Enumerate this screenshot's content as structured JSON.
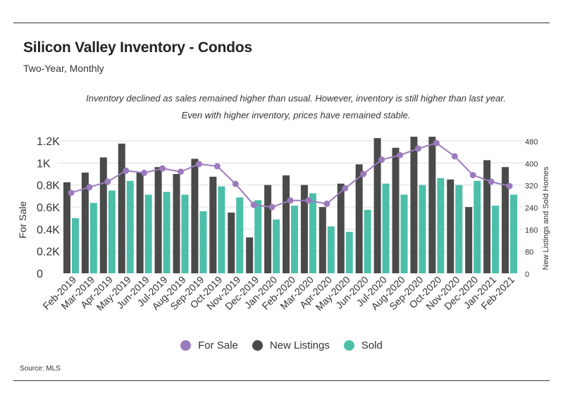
{
  "header": {
    "title": "Silicon Valley Inventory - Condos",
    "subtitle": "Two-Year, Monthly",
    "annotation": "Inventory declined as sales remained higher than usual. However, inventory is still higher than last year. Even with higher inventory, prices have remained stable."
  },
  "footer": {
    "source": "Source:  MLS"
  },
  "colors": {
    "for_sale": "#9b7bbd",
    "new_listings": "#4a4a4a",
    "sold": "#4cbfa9",
    "grid": "#dddddd"
  },
  "legend": [
    {
      "label": "For Sale",
      "color": "#9b7bbd"
    },
    {
      "label": "New Listings",
      "color": "#4a4a4a"
    },
    {
      "label": "Sold",
      "color": "#4cbfa9"
    }
  ],
  "chart_data": {
    "type": "bar",
    "title": "Silicon Valley Inventory - Condos",
    "subtitle": "Two-Year, Monthly",
    "ylabel_left": "For Sale",
    "ylabel_right": "New Listings and Sold Homes",
    "ylim_left": [
      0,
      1200
    ],
    "ylim_right": [
      0,
      480
    ],
    "left_ticks": [
      {
        "value": 0,
        "label": "0"
      },
      {
        "value": 200,
        "label": "0.2K"
      },
      {
        "value": 400,
        "label": "0.4K"
      },
      {
        "value": 600,
        "label": "0.6K"
      },
      {
        "value": 800,
        "label": "0.8K"
      },
      {
        "value": 1000,
        "label": "1K"
      },
      {
        "value": 1200,
        "label": "1.2K"
      }
    ],
    "right_ticks": [
      {
        "value": 0,
        "label": "0"
      },
      {
        "value": 80,
        "label": "80"
      },
      {
        "value": 160,
        "label": "160"
      },
      {
        "value": 240,
        "label": "240"
      },
      {
        "value": 320,
        "label": "320"
      },
      {
        "value": 400,
        "label": "400"
      },
      {
        "value": 480,
        "label": "480"
      }
    ],
    "categories": [
      "Feb-2019",
      "Mar-2019",
      "Apr-2019",
      "May-2019",
      "Jun-2019",
      "Jul-2019",
      "Aug-2019",
      "Sep-2019",
      "Oct-2019",
      "Nov-2019",
      "Dec-2019",
      "Jan-2020",
      "Feb-2020",
      "Mar-2020",
      "Apr-2020",
      "May-2020",
      "Jun-2020",
      "Jul-2020",
      "Aug-2020",
      "Sep-2020",
      "Oct-2020",
      "Nov-2020",
      "Dec-2020",
      "Jan-2021",
      "Feb-2021"
    ],
    "series": [
      {
        "name": "New Listings",
        "kind": "bar",
        "axis": "right",
        "values": [
          330,
          365,
          420,
          470,
          365,
          385,
          360,
          415,
          350,
          220,
          130,
          320,
          355,
          320,
          240,
          325,
          395,
          490,
          455,
          495,
          495,
          340,
          240,
          410,
          385
        ]
      },
      {
        "name": "Sold",
        "kind": "bar",
        "axis": "right",
        "values": [
          200,
          255,
          300,
          335,
          285,
          295,
          285,
          225,
          315,
          275,
          265,
          195,
          245,
          290,
          170,
          150,
          230,
          325,
          285,
          320,
          345,
          320,
          335,
          245,
          285
        ]
      },
      {
        "name": "For Sale",
        "kind": "line",
        "axis": "left",
        "values": [
          730,
          780,
          830,
          930,
          910,
          950,
          920,
          990,
          970,
          810,
          620,
          600,
          660,
          660,
          630,
          770,
          900,
          1030,
          1070,
          1130,
          1180,
          1060,
          890,
          830,
          790
        ]
      }
    ]
  }
}
